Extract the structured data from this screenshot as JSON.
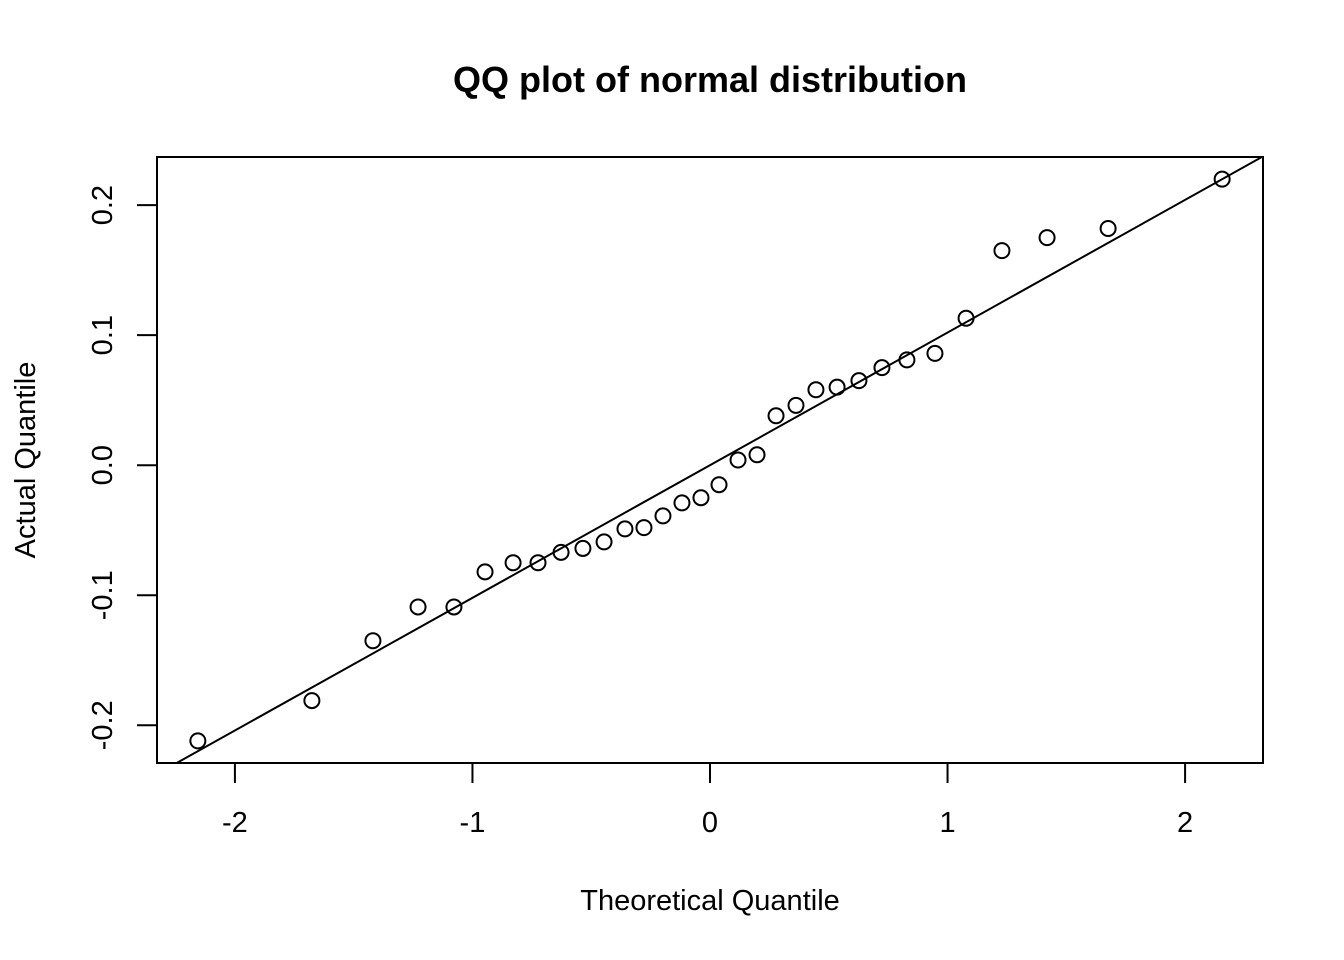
{
  "chart_data": {
    "type": "scatter",
    "title": "QQ plot of normal distribution",
    "xlabel": "Theoretical Quantile",
    "ylabel": "Actual Quantile",
    "xlim": [
      -2.328,
      2.328
    ],
    "ylim": [
      -0.229,
      0.237
    ],
    "x_ticks": [
      -2,
      -1,
      0,
      1,
      2
    ],
    "x_tick_labels": [
      "-2",
      "-1",
      "0",
      "1",
      "2"
    ],
    "y_ticks": [
      -0.2,
      -0.1,
      0.0,
      0.1,
      0.2
    ],
    "y_tick_labels": [
      "-0.2",
      "-0.1",
      "0.0",
      "0.1",
      "0.2"
    ],
    "grid": false,
    "marker": "open-circle",
    "colors": {
      "points": "#000000",
      "line": "#000000"
    },
    "points": {
      "x": [
        -2.156,
        -1.676,
        -1.419,
        -1.229,
        -1.078,
        -0.947,
        -0.829,
        -0.724,
        -0.627,
        -0.535,
        -0.446,
        -0.358,
        -0.278,
        -0.198,
        -0.118,
        -0.038,
        0.038,
        0.118,
        0.198,
        0.278,
        0.362,
        0.446,
        0.535,
        0.627,
        0.724,
        0.829,
        0.947,
        1.078,
        1.229,
        1.419,
        1.676,
        2.156
      ],
      "y": [
        -0.212,
        -0.181,
        -0.135,
        -0.109,
        -0.109,
        -0.082,
        -0.075,
        -0.075,
        -0.067,
        -0.064,
        -0.059,
        -0.049,
        -0.048,
        -0.039,
        -0.029,
        -0.025,
        -0.015,
        0.004,
        0.008,
        0.038,
        0.046,
        0.058,
        0.06,
        0.065,
        0.075,
        0.081,
        0.086,
        0.113,
        0.165,
        0.175,
        0.182,
        0.22
      ]
    },
    "reference_line": {
      "intercept": 0.0,
      "slope": 0.102
    }
  }
}
